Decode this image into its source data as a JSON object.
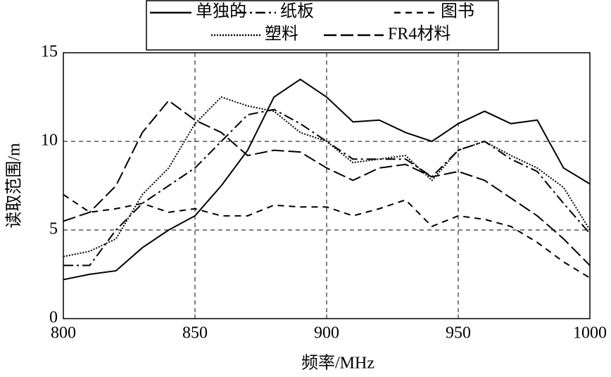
{
  "chart_data": {
    "type": "line",
    "x_label": "频率/MHz",
    "y_label": "读取范围/m",
    "x": [
      800,
      810,
      820,
      830,
      840,
      850,
      860,
      870,
      880,
      890,
      900,
      910,
      920,
      930,
      940,
      950,
      960,
      970,
      980,
      990,
      1000
    ],
    "series": [
      {
        "name": "单独的",
        "color": "#000000",
        "linestyle": "solid",
        "values": [
          2.2,
          2.5,
          2.7,
          4.0,
          5.0,
          5.8,
          7.5,
          9.5,
          12.5,
          13.5,
          12.5,
          11.1,
          11.2,
          10.5,
          10.0,
          11.0,
          11.7,
          11.0,
          11.2,
          8.5,
          7.6
        ]
      },
      {
        "name": "纸板",
        "color": "#000000",
        "linestyle": "dashdot",
        "values": [
          3.0,
          3.0,
          5.0,
          6.5,
          7.5,
          8.5,
          10.0,
          11.5,
          11.8,
          11.0,
          10.0,
          9.0,
          9.0,
          9.0,
          8.0,
          9.5,
          10.0,
          9.0,
          8.3,
          6.5,
          4.8
        ]
      },
      {
        "name": "图书",
        "color": "#000000",
        "linestyle": "dashed",
        "values": [
          7.0,
          6.0,
          6.2,
          6.5,
          6.0,
          6.2,
          5.8,
          5.8,
          6.4,
          6.3,
          6.3,
          5.8,
          6.2,
          6.7,
          5.2,
          5.8,
          5.6,
          5.2,
          4.3,
          3.2,
          2.3
        ]
      },
      {
        "name": "塑料",
        "color": "#000000",
        "linestyle": "dotted",
        "values": [
          3.5,
          3.8,
          4.5,
          7.0,
          8.5,
          11.0,
          12.5,
          12.0,
          11.7,
          10.5,
          10.0,
          8.8,
          9.0,
          9.2,
          7.8,
          9.5,
          10.0,
          9.2,
          8.5,
          7.4,
          5.0
        ]
      },
      {
        "name": "FR4材料",
        "color": "#000000",
        "linestyle": "longdash",
        "values": [
          5.5,
          6.0,
          7.5,
          10.5,
          12.3,
          11.2,
          10.5,
          9.2,
          9.5,
          9.4,
          8.5,
          7.8,
          8.5,
          8.7,
          8.0,
          8.3,
          7.8,
          6.8,
          5.8,
          4.5,
          3.0
        ]
      }
    ],
    "xlim": [
      800,
      1000
    ],
    "xticks": [
      800,
      850,
      900,
      950,
      1000
    ],
    "ylim": [
      0,
      15
    ],
    "yticks": [
      0,
      5,
      10,
      15
    ],
    "grid": true,
    "legend_position": "top"
  }
}
